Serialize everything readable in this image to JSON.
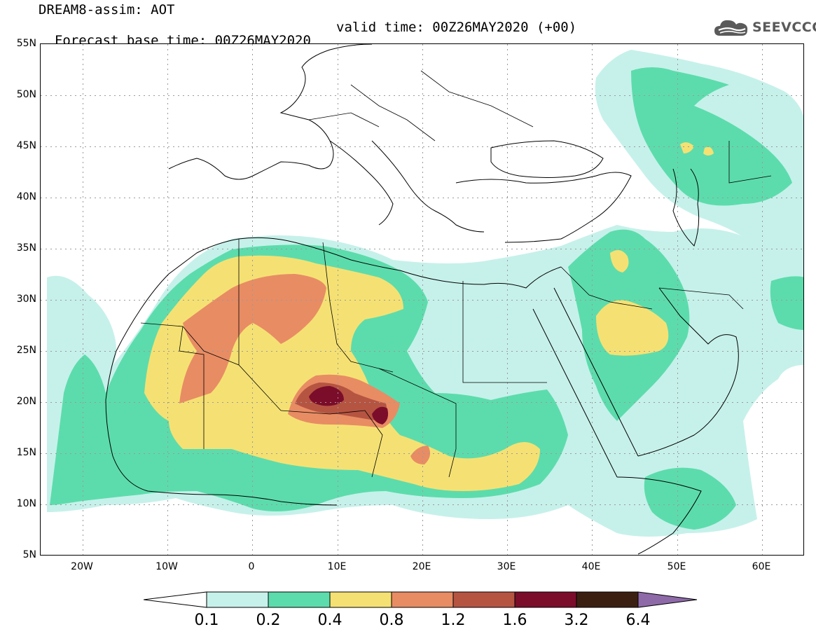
{
  "title": {
    "line1": "DREAM8-assim: AOT",
    "line2": "Forecast base time: 00Z26MAY2020",
    "valid": "valid time: 00Z26MAY2020 (+00)"
  },
  "logo": {
    "text": "SEEVCCC",
    "icon": "cloud-icon"
  },
  "map": {
    "lon_range": [
      -25,
      65
    ],
    "lat_range": [
      5,
      55
    ],
    "lat_labels": [
      "55N",
      "50N",
      "45N",
      "40N",
      "35N",
      "30N",
      "25N",
      "20N",
      "15N",
      "10N",
      "5N"
    ],
    "lon_labels": [
      "20W",
      "10W",
      "0",
      "10E",
      "20E",
      "30E",
      "40E",
      "50E",
      "60E"
    ],
    "gridlines": true,
    "variable": "AOT"
  },
  "colorbar": {
    "labels": [
      "0.1",
      "0.2",
      "0.4",
      "0.8",
      "1.2",
      "1.6",
      "3.2",
      "6.4"
    ],
    "colors": [
      "#c6f1ea",
      "#5cdcac",
      "#f5e173",
      "#e88c64",
      "#b65442",
      "#7b0d2a",
      "#3b2012",
      "#8e6aa8"
    ]
  }
}
